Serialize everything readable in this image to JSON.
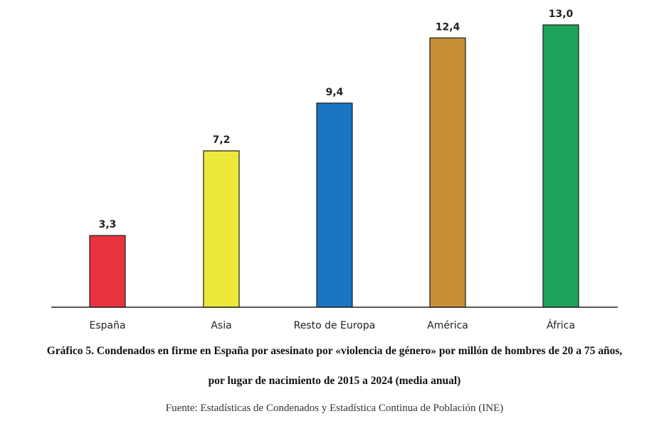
{
  "chart_data": {
    "type": "bar",
    "categories": [
      "España",
      "Asia",
      "Resto de Europa",
      "América",
      "África"
    ],
    "values": [
      3.3,
      7.2,
      9.4,
      12.4,
      13.0
    ],
    "value_labels": [
      "3,3",
      "7,2",
      "9,4",
      "12,4",
      "13,0"
    ],
    "colors": [
      "#e8333f",
      "#ede83c",
      "#1a76c2",
      "#c88f34",
      "#1fa35b"
    ],
    "ylim": [
      0,
      13.0
    ],
    "title": "",
    "xlabel": "",
    "ylabel": "",
    "grid": false,
    "legend": "none"
  },
  "caption": {
    "title_line1": "Gráfico 5.  Condenados en firme en España por asesinato por «violencia de género» por millón de hombres de 20 a 75 años,",
    "title_line2": "por lugar de nacimiento de 2015 a 2024 (media anual)",
    "source": "Fuente: Estadísticas de Condenados y Estadística Continua de Población (INE)"
  }
}
